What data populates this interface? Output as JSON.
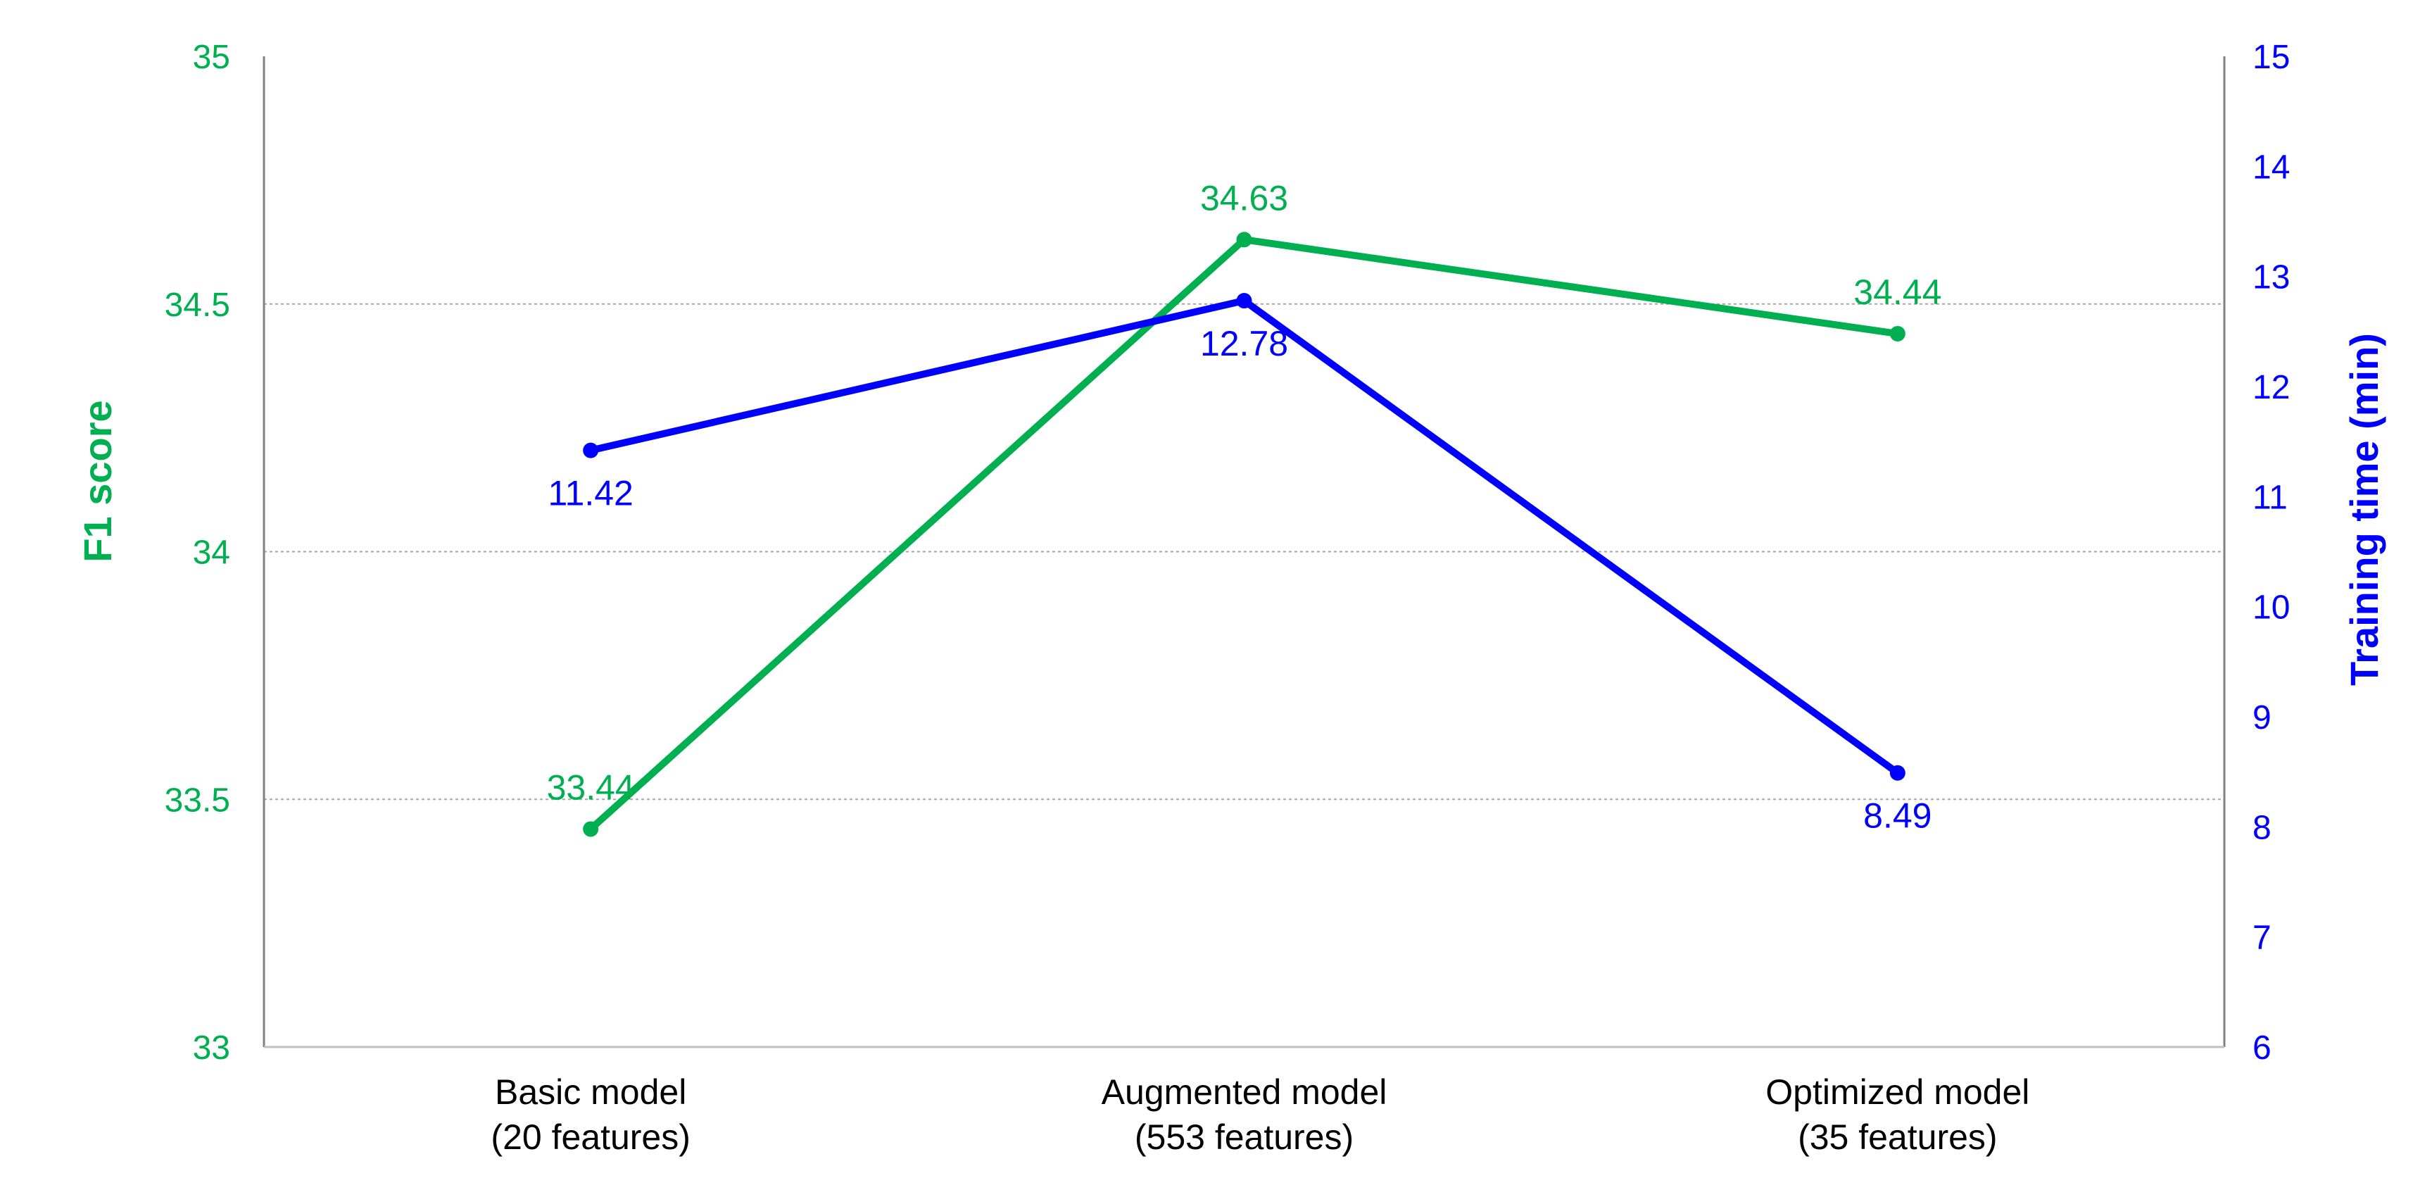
{
  "chart_data": {
    "type": "line",
    "categories": [
      [
        "Basic model",
        "(20 features)"
      ],
      [
        "Augmented model",
        "(553 features)"
      ],
      [
        "Optimized model",
        "(35 features)"
      ]
    ],
    "y_left": {
      "label": "F1 score",
      "ylim": [
        33,
        35
      ],
      "ticks": [
        "33",
        "33.5",
        "34",
        "34.5",
        "35"
      ],
      "tick_values": [
        33,
        33.5,
        34,
        34.5,
        35
      ],
      "color": "#00B050"
    },
    "y_right": {
      "label": "Training time (min)",
      "ylim": [
        6,
        15
      ],
      "ticks": [
        "6",
        "7",
        "8",
        "9",
        "10",
        "11",
        "12",
        "13",
        "14",
        "15"
      ],
      "tick_values": [
        6,
        7,
        8,
        9,
        10,
        11,
        12,
        13,
        14,
        15
      ],
      "color": "#0000FF"
    },
    "series": [
      {
        "axis": "left",
        "color": "#00B050",
        "values": [
          33.44,
          34.63,
          34.44
        ],
        "labels": [
          "33.44",
          "34.63",
          "34.44"
        ],
        "label_positions": [
          "above",
          "above",
          "above"
        ]
      },
      {
        "axis": "right",
        "color": "#0000FF",
        "values": [
          11.42,
          12.78,
          8.49
        ],
        "labels": [
          "11.42",
          "12.78",
          "8.49"
        ],
        "label_positions": [
          "below",
          "below",
          "below"
        ]
      }
    ],
    "grid": "horizontal dashed gridlines at left-axis ticks",
    "legend": "none"
  }
}
